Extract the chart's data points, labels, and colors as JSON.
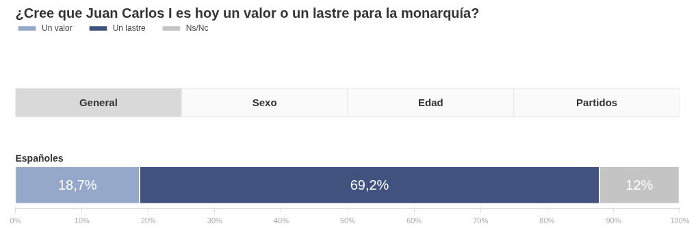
{
  "chart_data": {
    "type": "bar",
    "orientation": "horizontal",
    "stacked": true,
    "title": "¿Cree que Juan Carlos I es hoy un valor o un lastre para la monarquía?",
    "categories": [
      "Españoles"
    ],
    "series": [
      {
        "name": "Un valor",
        "color": "#95a8c9",
        "values": [
          18.7
        ],
        "value_labels": [
          "18,7%"
        ]
      },
      {
        "name": "Un lastre",
        "color": "#42527e",
        "values": [
          69.2
        ],
        "value_labels": [
          "69,2%"
        ]
      },
      {
        "name": "Ns/Nc",
        "color": "#c4c4c4",
        "values": [
          12
        ],
        "value_labels": [
          "12%"
        ]
      }
    ],
    "xlim": [
      0,
      100
    ],
    "xticks": [
      {
        "value": 0,
        "label": "0%"
      },
      {
        "value": 10,
        "label": "10%"
      },
      {
        "value": 20,
        "label": "20%"
      },
      {
        "value": 30,
        "label": "30%"
      },
      {
        "value": 40,
        "label": "40%"
      },
      {
        "value": 50,
        "label": "50%"
      },
      {
        "value": 60,
        "label": "60%"
      },
      {
        "value": 70,
        "label": "70%"
      },
      {
        "value": 80,
        "label": "80%"
      },
      {
        "value": 90,
        "label": "90%"
      },
      {
        "value": 100,
        "label": "100%"
      }
    ],
    "legend": "top left",
    "grid": false,
    "annotations": [
      "General",
      "Sexo",
      "Edad",
      "Partidos"
    ]
  }
}
